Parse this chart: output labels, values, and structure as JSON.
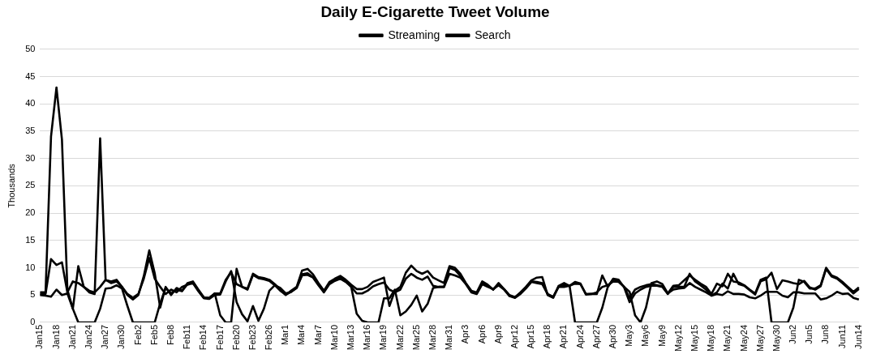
{
  "chart_data": {
    "type": "line",
    "title": "Daily E-Cigarette Tweet Volume",
    "ylabel": "Thousands",
    "categories": [
      "Jan15",
      null,
      null,
      "Jan18",
      null,
      null,
      "Jan21",
      null,
      null,
      "Jan24",
      null,
      null,
      "Jan27",
      null,
      null,
      "Jan30",
      null,
      null,
      "Feb2",
      null,
      null,
      "Feb5",
      null,
      null,
      "Feb8",
      null,
      null,
      "Feb11",
      null,
      null,
      "Feb14",
      null,
      null,
      "Feb17",
      null,
      null,
      "Feb20",
      null,
      null,
      "Feb23",
      null,
      null,
      "Feb26",
      null,
      null,
      "Mar1",
      null,
      null,
      "Mar4",
      null,
      null,
      "Mar7",
      null,
      null,
      "Mar10",
      null,
      null,
      "Mar13",
      null,
      null,
      "Mar16",
      null,
      null,
      "Mar19",
      null,
      null,
      "Mar22",
      null,
      null,
      "Mar25",
      null,
      null,
      "Mar28",
      null,
      null,
      "Mar31",
      null,
      null,
      "Apr3",
      null,
      null,
      "Apr6",
      null,
      null,
      "Apr9",
      null,
      null,
      "Apr12",
      null,
      null,
      "Apr15",
      null,
      null,
      "Apr18",
      null,
      null,
      "Apr21",
      null,
      null,
      "Apr24",
      null,
      null,
      "Apr27",
      null,
      null,
      "Apr30",
      null,
      null,
      "May3",
      null,
      null,
      "May6",
      null,
      null,
      "May9",
      null,
      null,
      "May12",
      null,
      null,
      "May15",
      null,
      null,
      "May18",
      null,
      null,
      "May21",
      null,
      null,
      "May24",
      null,
      null,
      "May27",
      null,
      null,
      "May30",
      null,
      null,
      "Jun2",
      null,
      null,
      "Jun5",
      null,
      null,
      "Jun8",
      null,
      null,
      "Jun11",
      null,
      null,
      "Jun14"
    ],
    "series": [
      {
        "color": "#000000",
        "values": [
          5.5,
          5.5,
          34,
          43,
          33.5,
          6,
          2.5,
          10.3,
          6.5,
          5.5,
          5.2,
          33.7,
          7.8,
          7.5,
          7.8,
          6.5,
          5,
          4.2,
          5,
          8.5,
          13.2,
          9,
          2.7,
          6.5,
          5,
          6.3,
          5.8,
          7.2,
          7.5,
          6,
          4.6,
          4.5,
          5.3,
          5.3,
          7.8,
          9.2,
          7,
          6.5,
          6.2,
          8.9,
          8.3,
          8.1,
          7.8,
          7,
          6,
          5,
          5.8,
          6.5,
          9.5,
          9.8,
          8.8,
          7.2,
          5.8,
          7.4,
          8,
          8.5,
          7.8,
          6.9,
          6.1,
          6.1,
          6.5,
          7.4,
          7.8,
          8.2,
          3,
          5.8,
          6.5,
          9.1,
          10.4,
          9.4,
          8.9,
          9.4,
          8.2,
          7.7,
          7.2,
          10.3,
          10,
          8.9,
          7.2,
          5.8,
          5.5,
          7.5,
          6.9,
          6,
          7.2,
          6.1,
          5,
          4.6,
          5.5,
          6.5,
          7.7,
          8.2,
          8.3,
          5,
          4.5,
          6.7,
          7.2,
          6.7,
          7.4,
          7.1,
          5.1,
          5.2,
          5.2,
          8.6,
          6.5,
          8,
          7.8,
          6.4,
          3.7,
          5.3,
          6,
          6.5,
          6.7,
          6.7,
          6.5,
          5.2,
          6.5,
          6.5,
          6.5,
          8.9,
          7.5,
          6.8,
          6,
          4.9,
          5.5,
          7.1,
          6.2,
          8.9,
          7,
          6.7,
          5.9,
          5.1,
          7.5,
          7.9,
          9.1,
          6.1,
          7.7,
          7.5,
          7.2,
          7,
          7.6,
          6.4,
          6,
          6.6,
          9.8,
          8.4,
          8,
          7.2,
          6.3,
          5.3,
          6.1
        ]
      },
      {
        "name": "Streaming",
        "color": "#000000",
        "values": [
          5.2,
          5.2,
          11.6,
          10.5,
          11,
          5.5,
          7.5,
          7.2,
          6.5,
          5.8,
          5.5,
          6.5,
          7.8,
          7.2,
          7.5,
          6.5,
          5.2,
          4.5,
          5.2,
          8,
          11.8,
          8,
          6.5,
          5.2,
          6,
          5.5,
          6.5,
          6.9,
          7.2,
          5.7,
          4.4,
          4.3,
          5,
          5.1,
          7.5,
          9.4,
          3.7,
          1.5,
          0.2,
          3,
          0.3,
          2.5,
          5.8,
          6.8,
          6.3,
          5.3,
          5.6,
          6.3,
          8.6,
          8.7,
          8.2,
          6.8,
          5.5,
          7,
          7.6,
          8,
          7.4,
          6.5,
          5.3,
          5.3,
          5.8,
          6.6,
          7,
          7.3,
          6,
          5.5,
          6,
          8,
          8.9,
          8.2,
          7.8,
          8.4,
          6.7,
          6.5,
          6.5,
          8.9,
          8.6,
          8.2,
          7,
          5.5,
          5.2,
          7,
          6.5,
          6.1,
          6.8,
          6,
          4.8,
          4.5,
          5.2,
          6.2,
          7.4,
          7.2,
          7,
          5.2,
          4.7,
          6.5,
          6.5,
          6.7,
          7.1,
          7,
          5.2,
          5.2,
          5.5,
          6.5,
          6.8,
          7.5,
          7.4,
          6.5,
          4.4,
          6,
          6.5,
          6.8,
          7,
          6.8,
          6.6,
          5.3,
          6,
          6.2,
          6.3,
          7.2,
          6.5,
          6,
          5.5,
          4.9,
          5.2,
          5,
          5.7,
          5.2,
          5.2,
          5.1,
          4.6,
          4.4,
          4.9,
          5.6,
          5.6,
          5.6,
          4.9,
          4.6,
          5.5,
          5.5,
          5.3,
          5.3,
          5.3,
          4.2,
          4.4,
          4.9,
          5.6,
          5.2,
          5.3,
          4.5,
          4.2
        ]
      },
      {
        "name": "Search",
        "color": "#000000",
        "values": [
          5,
          4.9,
          4.7,
          6,
          5,
          5.3,
          2.5,
          0,
          0,
          0,
          0,
          2.5,
          6.2,
          6.3,
          6.8,
          6.2,
          3,
          0,
          0,
          0,
          0,
          0,
          3.5,
          6.3,
          5.3,
          6,
          5.7,
          7,
          7.3,
          5.8,
          4.5,
          4.4,
          5.3,
          1.3,
          0,
          0,
          9.8,
          6.5,
          6,
          8.7,
          8.1,
          7.9,
          7.6,
          6.8,
          5.8,
          5.1,
          5.6,
          6.3,
          8.8,
          9,
          8.3,
          7,
          5.6,
          7.2,
          7.8,
          8.3,
          7.6,
          6.5,
          1.6,
          0.3,
          0,
          0,
          0,
          4.4,
          4.4,
          6,
          1.3,
          2,
          3.2,
          4.9,
          2,
          3.4,
          6.3,
          6.5,
          6.5,
          10,
          9.6,
          8.5,
          7.1,
          5.6,
          5.3,
          7.2,
          6.7,
          6,
          7,
          6.1,
          4.9,
          4.6,
          5.4,
          6.4,
          7.5,
          7.4,
          7.2,
          5.1,
          4.6,
          6.6,
          6.8,
          6.7,
          0,
          0,
          0,
          0,
          0,
          2.7,
          6.5,
          7.9,
          7.5,
          6.5,
          5.6,
          1.3,
          0,
          2.7,
          7.2,
          7.5,
          7,
          5.3,
          6.7,
          6.8,
          7.7,
          8.6,
          7.8,
          7.1,
          6.5,
          5.2,
          7.1,
          6.6,
          8.9,
          7.5,
          7.3,
          6.8,
          6,
          5.3,
          7.8,
          8.2,
          0,
          0,
          0,
          0,
          2.7,
          7.8,
          7.4,
          6.2,
          6.2,
          6.8,
          10,
          8.6,
          8.2,
          7.4,
          6.5,
          5.6,
          6.4
        ]
      }
    ],
    "ylim": [
      0,
      50
    ],
    "yticks": [
      0,
      5,
      10,
      15,
      20,
      25,
      30,
      35,
      40,
      45,
      50
    ],
    "grid": "y",
    "legend": "top",
    "marker": "none",
    "line_style": "solid"
  }
}
